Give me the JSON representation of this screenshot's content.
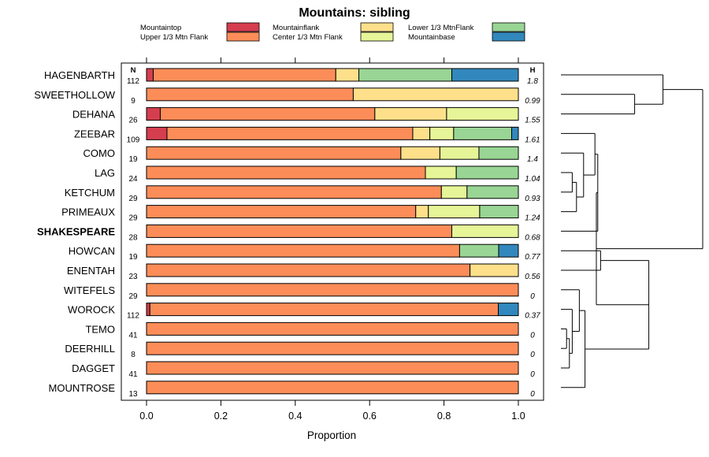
{
  "chart_data": {
    "type": "bar",
    "stacked": true,
    "orientation": "horizontal",
    "title": "Mountains: sibling",
    "xlabel": "Proportion",
    "xlim": [
      0,
      1
    ],
    "xticks": [
      "0.0",
      "0.2",
      "0.4",
      "0.6",
      "0.8",
      "1.0"
    ],
    "n_header": "N",
    "h_header": "H",
    "legend": [
      {
        "name": "Mountaintop",
        "color": "#d53e4f"
      },
      {
        "name": "Upper 1/3 Mtn Flank",
        "color": "#fc8d59"
      },
      {
        "name": "Mountainflank",
        "color": "#fee08b"
      },
      {
        "name": "Center 1/3 Mtn Flank",
        "color": "#e6f598"
      },
      {
        "name": "Lower 1/3 MtnFlank",
        "color": "#99d594"
      },
      {
        "name": "Mountainbase",
        "color": "#3288bd"
      }
    ],
    "categories": [
      "HAGENBARTH",
      "SWEETHOLLOW",
      "DEHANA",
      "ZEEBAR",
      "COMO",
      "LAG",
      "KETCHUM",
      "PRIMEAUX",
      "SHAKESPEARE",
      "HOWCAN",
      "ENENTAH",
      "WITEFELS",
      "WOROCK",
      "TEMO",
      "DEERHILL",
      "DAGGET",
      "MOUNTROSE"
    ],
    "highlight": "SHAKESPEARE",
    "N": [
      "112",
      "9",
      "26",
      "109",
      "19",
      "24",
      "29",
      "29",
      "28",
      "19",
      "23",
      "29",
      "112",
      "41",
      "8",
      "41",
      "13"
    ],
    "H": [
      "1.8",
      "0.99",
      "1.55",
      "1.61",
      "1.4",
      "1.04",
      "0.93",
      "1.24",
      "0.68",
      "0.77",
      "0.56",
      "0",
      "0.37",
      "0",
      "0",
      "0",
      "0"
    ],
    "series": [
      {
        "name": "Mountaintop",
        "values": [
          0.018,
          0,
          0.037,
          0.055,
          0,
          0,
          0,
          0,
          0,
          0,
          0,
          0,
          0.009,
          0,
          0,
          0,
          0
        ]
      },
      {
        "name": "Upper 1/3 Mtn Flank",
        "values": [
          0.491,
          0.556,
          0.577,
          0.661,
          0.684,
          0.75,
          0.793,
          0.724,
          0.821,
          0.842,
          0.87,
          1.0,
          0.937,
          1.0,
          1.0,
          1.0,
          1.0
        ]
      },
      {
        "name": "Mountainflank",
        "values": [
          0.062,
          0.444,
          0.193,
          0.046,
          0.105,
          0,
          0,
          0.034,
          0,
          0,
          0.13,
          0,
          0,
          0,
          0,
          0,
          0
        ]
      },
      {
        "name": "Center 1/3 Mtn Flank",
        "values": [
          0,
          0,
          0.193,
          0.064,
          0.105,
          0.083,
          0.069,
          0.138,
          0.179,
          0,
          0,
          0,
          0,
          0,
          0,
          0,
          0
        ]
      },
      {
        "name": "Lower 1/3 MtnFlank",
        "values": [
          0.25,
          0,
          0,
          0.156,
          0.106,
          0.167,
          0.138,
          0.104,
          0,
          0.105,
          0,
          0,
          0,
          0,
          0,
          0,
          0
        ]
      },
      {
        "name": "Mountainbase",
        "values": [
          0.179,
          0,
          0,
          0.018,
          0,
          0,
          0,
          0,
          0,
          0.053,
          0,
          0,
          0.054,
          0,
          0,
          0,
          0
        ]
      }
    ],
    "dendrogram": {
      "leaves": [
        "HAGENBARTH",
        "SWEETHOLLOW",
        "DEHANA",
        "ZEEBAR",
        "COMO",
        "LAG",
        "KETCHUM",
        "PRIMEAUX",
        "SHAKESPEARE",
        "HOWCAN",
        "ENENTAH",
        "WITEFELS",
        "WOROCK",
        "TEMO",
        "DEERHILL",
        "DAGGET",
        "MOUNTROSE"
      ],
      "merges": [
        [
          13,
          14,
          0.04
        ],
        [
          -1,
          15,
          0.06
        ],
        [
          12,
          -2,
          0.08
        ],
        [
          11,
          -3,
          0.13
        ],
        [
          -4,
          16,
          0.17
        ],
        [
          9,
          10,
          0.28
        ],
        [
          -5,
          -6,
          0.62
        ],
        [
          5,
          6,
          0.08
        ],
        [
          -8,
          7,
          0.11
        ],
        [
          -9,
          4,
          0.16
        ],
        [
          -10,
          3,
          0.24
        ],
        [
          -11,
          8,
          0.26
        ],
        [
          -12,
          -7,
          0.25
        ],
        [
          1,
          2,
          0.52
        ],
        [
          0,
          -14,
          0.72
        ],
        [
          -13,
          -15,
          1.0
        ]
      ]
    }
  }
}
